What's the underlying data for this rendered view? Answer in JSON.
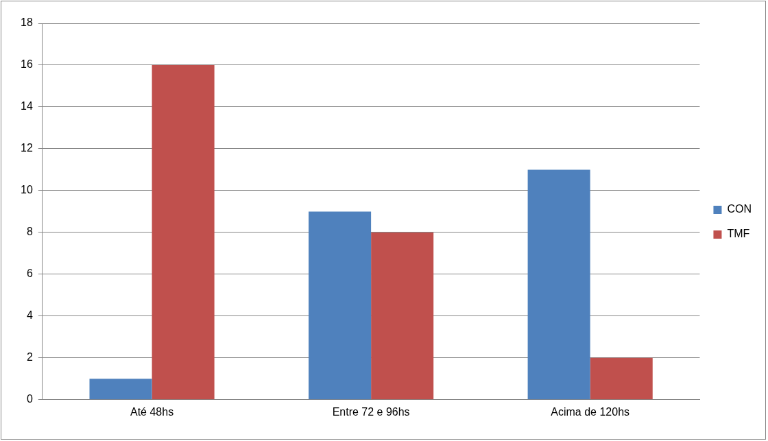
{
  "chart_data": {
    "type": "bar",
    "categories": [
      "Até 48hs",
      "Entre 72 e 96hs",
      "Acima de 120hs"
    ],
    "series": [
      {
        "name": "CON",
        "color": "#4f81bd",
        "values": [
          1,
          9,
          11
        ]
      },
      {
        "name": "TMF",
        "color": "#c0504d",
        "values": [
          16,
          8,
          2
        ]
      }
    ],
    "ylim": [
      0,
      18
    ],
    "yticks": [
      0,
      2,
      4,
      6,
      8,
      10,
      12,
      14,
      16,
      18
    ],
    "grid": "y",
    "legend": "right"
  }
}
